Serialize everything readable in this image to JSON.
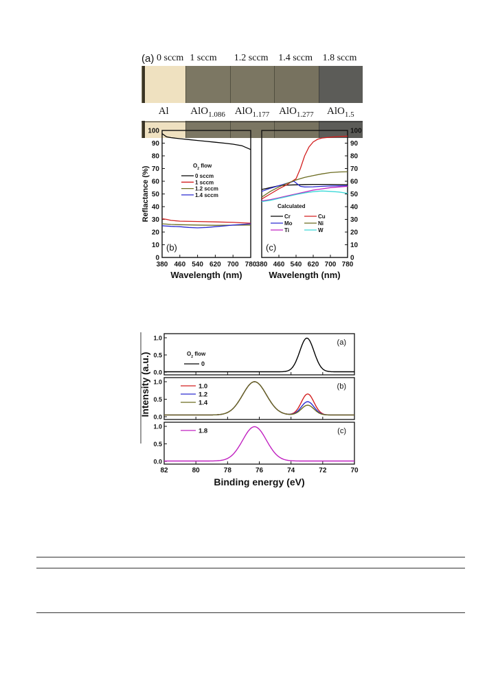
{
  "figure1": {
    "panel_a": {
      "label": "(a)",
      "flows": [
        "0 sccm",
        "1 sccm",
        "1.2 sccm",
        "1.4 sccm",
        "1.8 sccm"
      ],
      "materials": [
        {
          "base": "Al",
          "sub": ""
        },
        {
          "base": "AlO",
          "sub": "1.086"
        },
        {
          "base": "AlO",
          "sub": "1.177"
        },
        {
          "base": "AlO",
          "sub": "1.277"
        },
        {
          "base": "AlO",
          "sub": "1.5"
        }
      ],
      "sample_colors": [
        "#efe1c0",
        "#7c7763",
        "#7b7662",
        "#77725f",
        "#5c5c58"
      ]
    },
    "ylabel": "Reflactance (%)"
  },
  "figure2": {
    "ylabel": "Intensity (a.u.)"
  },
  "chart_data": [
    {
      "type": "line",
      "panel": "(b)",
      "xlabel": "Wavelength (nm)",
      "ylabel": "Reflactance (%)",
      "xlim": [
        380,
        780
      ],
      "ylim": [
        0,
        100
      ],
      "xticks": [
        380,
        460,
        540,
        620,
        700,
        780
      ],
      "yticks": [
        0,
        10,
        20,
        30,
        40,
        50,
        60,
        70,
        80,
        90,
        100
      ],
      "legend_title": "O2 flow",
      "legend_position": "center-left",
      "series": [
        {
          "name": "0 sccm",
          "color": "#000000",
          "x": [
            380,
            400,
            420,
            460,
            500,
            540,
            580,
            620,
            660,
            700,
            740,
            780
          ],
          "y": [
            97.5,
            95,
            94.3,
            93.5,
            92.8,
            92.1,
            91.4,
            90.7,
            90,
            89.2,
            88,
            85
          ]
        },
        {
          "name": "1 sccm",
          "color": "#d21f1f",
          "x": [
            380,
            400,
            420,
            460,
            540,
            620,
            700,
            780
          ],
          "y": [
            30.5,
            30,
            29.2,
            28.6,
            28.3,
            28,
            27.6,
            27
          ]
        },
        {
          "name": "1.2 sccm",
          "color": "#6b6b1f",
          "x": [
            380,
            420,
            460,
            540,
            620,
            700,
            780
          ],
          "y": [
            26.5,
            26,
            25.8,
            25.5,
            25.3,
            25.4,
            25.5
          ]
        },
        {
          "name": "1.4 sccm",
          "color": "#2a2ad0",
          "x": [
            380,
            420,
            460,
            500,
            540,
            580,
            620,
            660,
            700,
            780
          ],
          "y": [
            25,
            24.5,
            24.2,
            23.6,
            23.3,
            23.6,
            24.2,
            24.8,
            25.5,
            26.5
          ]
        }
      ]
    },
    {
      "type": "line",
      "panel": "(c)",
      "xlabel": "Wavelength (nm)",
      "ylabel": "",
      "xlim": [
        380,
        780
      ],
      "ylim": [
        0,
        100
      ],
      "xticks": [
        380,
        460,
        540,
        620,
        700,
        780
      ],
      "yticks": [
        0,
        10,
        20,
        30,
        40,
        50,
        60,
        70,
        80,
        90,
        100
      ],
      "legend_title": "Calculated",
      "legend_position": "lower-center",
      "series": [
        {
          "name": "Cr",
          "color": "#000000",
          "x": [
            380,
            420,
            460,
            500,
            540,
            580,
            620,
            700,
            780
          ],
          "y": [
            53.5,
            55,
            56.5,
            57,
            57.2,
            57.4,
            57.5,
            57.5,
            57.3
          ]
        },
        {
          "name": "Cu",
          "color": "#d21f1f",
          "x": [
            380,
            420,
            460,
            500,
            540,
            560,
            580,
            600,
            620,
            640,
            660,
            700,
            740,
            780
          ],
          "y": [
            46,
            50,
            54,
            57.5,
            62,
            70,
            80,
            87,
            91,
            93,
            94,
            94.7,
            95.2,
            95.5
          ]
        },
        {
          "name": "Mo",
          "color": "#2a2ad0",
          "x": [
            380,
            420,
            460,
            500,
            530,
            545,
            560,
            580,
            620,
            660,
            700,
            780
          ],
          "y": [
            52,
            54.5,
            56.5,
            58.5,
            60,
            58,
            56,
            55.5,
            55.6,
            56,
            56.3,
            56.5
          ]
        },
        {
          "name": "Ni",
          "color": "#6b6b1f",
          "x": [
            380,
            420,
            460,
            500,
            540,
            580,
            620,
            660,
            700,
            740,
            780
          ],
          "y": [
            47.5,
            52,
            55.5,
            58.5,
            61,
            63,
            64.5,
            65.8,
            66.8,
            67.3,
            67.5
          ]
        },
        {
          "name": "Ti",
          "color": "#c020c0",
          "x": [
            380,
            420,
            460,
            500,
            540,
            580,
            620,
            660,
            700,
            740,
            780
          ],
          "y": [
            44.5,
            45.5,
            47,
            48.5,
            50,
            51.5,
            53,
            54,
            55,
            55.5,
            56
          ]
        },
        {
          "name": "W",
          "color": "#3ad8d8",
          "x": [
            380,
            420,
            460,
            500,
            540,
            580,
            620,
            660,
            700,
            740,
            780
          ],
          "y": [
            44,
            45,
            46.5,
            48,
            49.5,
            50.8,
            51.8,
            52.3,
            52,
            51.5,
            50.5
          ]
        }
      ]
    },
    {
      "type": "line",
      "panel": "(a)",
      "xlabel": "Binding energy (eV)",
      "ylabel": "Intensity (a.u.)",
      "xlim": [
        82,
        70
      ],
      "ylim": [
        0,
        1.0
      ],
      "xticks": [
        82,
        80,
        78,
        76,
        74,
        72,
        70
      ],
      "yticks": [
        0.0,
        0.5,
        1.0
      ],
      "legend_title": "O2 flow",
      "legend_position": "left",
      "series": [
        {
          "name": "0",
          "color": "#000000",
          "peaks": [
            {
              "center": 73.0,
              "height": 0.98,
              "sigma": 0.45
            }
          ],
          "baseline": 0.01
        }
      ]
    },
    {
      "type": "line",
      "panel": "(b)",
      "xlabel": "Binding energy (eV)",
      "ylabel": "Intensity (a.u.)",
      "xlim": [
        82,
        70
      ],
      "ylim": [
        0,
        1.0
      ],
      "xticks": [
        82,
        80,
        78,
        76,
        74,
        72,
        70
      ],
      "yticks": [
        0.0,
        0.5,
        1.0
      ],
      "legend_position": "left",
      "series": [
        {
          "name": "1.0",
          "color": "#d21f1f",
          "peaks": [
            {
              "center": 76.3,
              "height": 0.95,
              "sigma": 0.75
            },
            {
              "center": 72.95,
              "height": 0.6,
              "sigma": 0.4
            }
          ],
          "baseline": 0.05
        },
        {
          "name": "1.2",
          "color": "#2a2ad0",
          "peaks": [
            {
              "center": 76.3,
              "height": 0.95,
              "sigma": 0.75
            },
            {
              "center": 72.95,
              "height": 0.38,
              "sigma": 0.4
            }
          ],
          "baseline": 0.05
        },
        {
          "name": "1.4",
          "color": "#6b6b1f",
          "peaks": [
            {
              "center": 76.3,
              "height": 0.95,
              "sigma": 0.75
            },
            {
              "center": 72.95,
              "height": 0.28,
              "sigma": 0.4
            }
          ],
          "baseline": 0.05
        }
      ]
    },
    {
      "type": "line",
      "panel": "(c)",
      "xlabel": "Binding energy (eV)",
      "ylabel": "Intensity (a.u.)",
      "xlim": [
        82,
        70
      ],
      "ylim": [
        0,
        1.0
      ],
      "xticks": [
        82,
        80,
        78,
        76,
        74,
        72,
        70
      ],
      "yticks": [
        0.0,
        0.5,
        1.0
      ],
      "legend_position": "left",
      "series": [
        {
          "name": "1.8",
          "color": "#c020c0",
          "peaks": [
            {
              "center": 76.3,
              "height": 0.98,
              "sigma": 0.75
            }
          ],
          "baseline": 0.01
        }
      ]
    }
  ]
}
